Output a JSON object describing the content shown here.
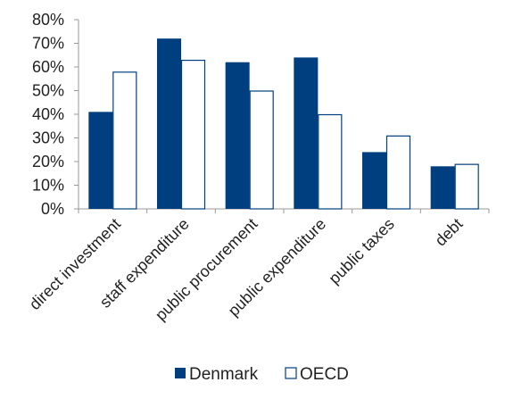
{
  "chart_data": {
    "type": "bar",
    "title": "",
    "xlabel": "",
    "ylabel": "",
    "categories": [
      "direct investment",
      "staff expenditure",
      "public procurement",
      "public expenditure",
      "public taxes",
      "debt"
    ],
    "series": [
      {
        "name": "Denmark",
        "values": [
          41,
          72,
          62,
          64,
          24,
          18
        ],
        "color": "#003f7f",
        "style": "filled"
      },
      {
        "name": "OECD",
        "values": [
          58,
          63,
          50,
          40,
          31,
          19
        ],
        "color": "#003f7f",
        "style": "outline"
      }
    ],
    "ylim": [
      0,
      80
    ],
    "y_ticks": [
      "0%",
      "10%",
      "20%",
      "30%",
      "40%",
      "50%",
      "60%",
      "70%",
      "80%"
    ],
    "y_unit": "%",
    "grid": false,
    "legend_position": "bottom"
  }
}
